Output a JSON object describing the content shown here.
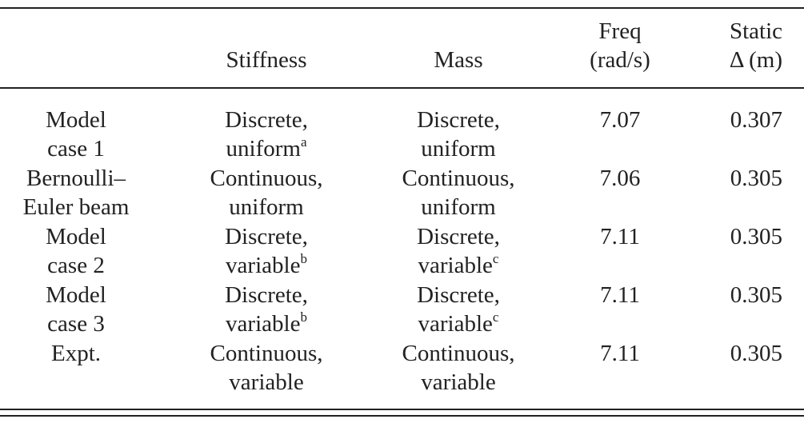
{
  "table": {
    "header": [
      {
        "lines": [
          "Stiffness"
        ]
      },
      {
        "lines": [
          "Mass"
        ]
      },
      {
        "lines": [
          "Freq",
          "(rad/s)"
        ]
      },
      {
        "lines": [
          "Static",
          "Δ (m)"
        ]
      }
    ],
    "rows": [
      [
        {
          "lines": [
            "Model",
            "case 1"
          ]
        },
        {
          "lines": [
            "Discrete,",
            "uniform"
          ],
          "sup": "a"
        },
        {
          "lines": [
            "Discrete,",
            "uniform"
          ]
        },
        {
          "lines": [
            "7.07"
          ]
        },
        {
          "lines": [
            "0.307"
          ]
        }
      ],
      [
        {
          "lines": [
            "Bernoulli–",
            "Euler beam"
          ]
        },
        {
          "lines": [
            "Continuous,",
            "uniform"
          ]
        },
        {
          "lines": [
            "Continuous,",
            "uniform"
          ]
        },
        {
          "lines": [
            "7.06"
          ]
        },
        {
          "lines": [
            "0.305"
          ]
        }
      ],
      [
        {
          "lines": [
            "Model",
            "case 2"
          ]
        },
        {
          "lines": [
            "Discrete,",
            "variable"
          ],
          "sup": "b"
        },
        {
          "lines": [
            "Discrete,",
            "variable"
          ],
          "sup": "c"
        },
        {
          "lines": [
            "7.11"
          ]
        },
        {
          "lines": [
            "0.305"
          ]
        }
      ],
      [
        {
          "lines": [
            "Model",
            "case 3"
          ]
        },
        {
          "lines": [
            "Discrete,",
            "variable"
          ],
          "sup": "b"
        },
        {
          "lines": [
            "Discrete,",
            "variable"
          ],
          "sup": "c"
        },
        {
          "lines": [
            "7.11"
          ]
        },
        {
          "lines": [
            "0.305"
          ]
        }
      ],
      [
        {
          "lines": [
            "Expt."
          ]
        },
        {
          "lines": [
            "Continuous,",
            "variable"
          ]
        },
        {
          "lines": [
            "Continuous,",
            "variable"
          ]
        },
        {
          "lines": [
            "7.11"
          ]
        },
        {
          "lines": [
            "0.305"
          ]
        }
      ]
    ]
  }
}
